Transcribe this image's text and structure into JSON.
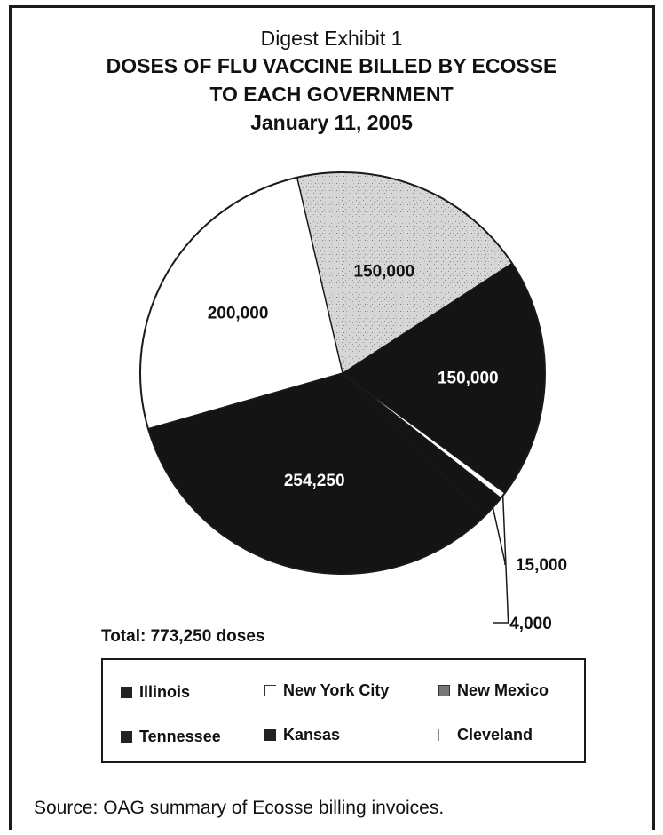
{
  "header": {
    "exhibit": "Digest Exhibit 1",
    "title_line1": "DOSES OF FLU VACCINE BILLED BY ECOSSE",
    "title_line2": "TO EACH GOVERNMENT",
    "date": "January 11, 2005"
  },
  "chart_data": {
    "type": "pie",
    "title": "DOSES OF FLU VACCINE BILLED BY ECOSSE TO EACH GOVERNMENT",
    "slices": [
      {
        "name": "New Mexico",
        "value": 150000,
        "label": "150,000",
        "color": "#cfcfcf"
      },
      {
        "name": "Kansas",
        "value": 150000,
        "label": "150,000",
        "color": "#141414"
      },
      {
        "name": "Cleveland",
        "value": 4000,
        "label": "4,000",
        "color": "#ffffff"
      },
      {
        "name": "Tennessee",
        "value": 15000,
        "label": "15,000",
        "color": "#141414"
      },
      {
        "name": "Illinois",
        "value": 254250,
        "label": "254,250",
        "color": "#141414"
      },
      {
        "name": "New York City",
        "value": 200000,
        "label": "200,000",
        "color": "#ffffff"
      }
    ],
    "total_label": "Total: 773,250 doses",
    "legend": [
      "Illinois",
      "New York City",
      "New Mexico",
      "Tennessee",
      "Kansas",
      "Cleveland"
    ],
    "legend_placement": "bottom"
  },
  "source": "Source:  OAG summary of Ecosse billing invoices."
}
